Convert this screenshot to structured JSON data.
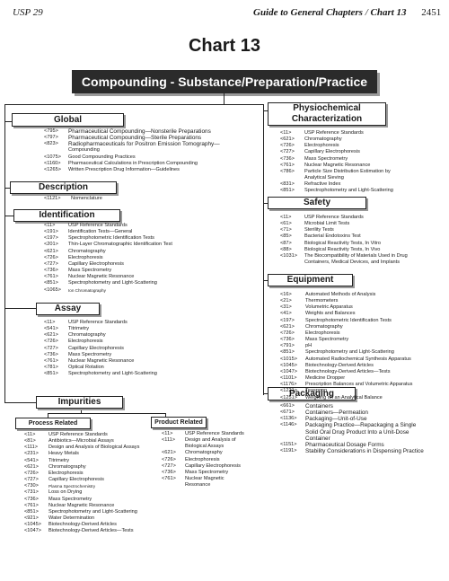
{
  "header": {
    "left": "USP 29",
    "guide": "Guide to General Chapters",
    "sep": "/",
    "chart": "Chart 13",
    "page": "2451"
  },
  "title": "Chart 13",
  "banner": "Compounding  -  Substance/Preparation/Practice",
  "sections": {
    "global": {
      "title": "Global",
      "items": [
        {
          "code": "<795>",
          "text": "Pharmaceutical Compounding—Nonsterile Preparations"
        },
        {
          "code": "<797>",
          "text": "Pharmaceutical Compounding—Sterile Preparations"
        },
        {
          "code": "<823>",
          "text": "Radiopharmaceuticals for Positron Emission Tomography—"
        },
        {
          "code": "",
          "text": "Compounding"
        },
        {
          "code": "<1075>",
          "text": "Good Compounding Practices"
        },
        {
          "code": "<1160>",
          "text": "Pharmaceutical Calculations in Prescription Compounding"
        },
        {
          "code": "<1265>",
          "text": "Written Prescription Drug Information—Guidelines"
        }
      ]
    },
    "description": {
      "title": "Description",
      "items": [
        {
          "code": "<1121>",
          "text": "Nomenclature"
        }
      ]
    },
    "identification": {
      "title": "Identification",
      "items": [
        {
          "code": "<11>",
          "text": "USP Reference Standards"
        },
        {
          "code": "<191>",
          "text": "Identification Tests—General"
        },
        {
          "code": "<197>",
          "text": "Spectrophotometric Identification Tests"
        },
        {
          "code": "<201>",
          "text": "Thin-Layer Chromatographic Identification Test"
        },
        {
          "code": "<621>",
          "text": "Chromatography"
        },
        {
          "code": "<726>",
          "text": "Electrophoresis"
        },
        {
          "code": "<727>",
          "text": "Capillary Electrophoresis"
        },
        {
          "code": "<736>",
          "text": "Mass Spectrometry"
        },
        {
          "code": "<761>",
          "text": "Nuclear Magnetic Resonance"
        },
        {
          "code": "<851>",
          "text": "Spectrophotometry and Light-Scattering"
        },
        {
          "code": "<1065>",
          "text": "Ion Chromatography"
        }
      ]
    },
    "assay": {
      "title": "Assay",
      "items": [
        {
          "code": "<11>",
          "text": "USP Reference Standards"
        },
        {
          "code": "<541>",
          "text": "Titrimetry"
        },
        {
          "code": "<621>",
          "text": "Chromatography"
        },
        {
          "code": "<726>",
          "text": "Electrophoresis"
        },
        {
          "code": "<727>",
          "text": "Capillary Electrophoresis"
        },
        {
          "code": "<736>",
          "text": "Mass Spectrometry"
        },
        {
          "code": "<761>",
          "text": "Nuclear Magnetic Resonance"
        },
        {
          "code": "<781>",
          "text": "Optical Rotation"
        },
        {
          "code": "<851>",
          "text": "Spectrophotometry and Light-Scattering"
        }
      ]
    },
    "impurities": {
      "title": "Impurities"
    },
    "process_related": {
      "title": "Process Related",
      "items": [
        {
          "code": "<11>",
          "text": "USP Reference Standards"
        },
        {
          "code": "<81>",
          "text": "Antibiotics—Microbial Assays"
        },
        {
          "code": "<111>",
          "text": "Design and Analysis of Biological Assays"
        },
        {
          "code": "<231>",
          "text": "Heavy Metals"
        },
        {
          "code": "<541>",
          "text": "Titrimetry"
        },
        {
          "code": "<621>",
          "text": "Chromatography"
        },
        {
          "code": "<726>",
          "text": "Electrophoresis"
        },
        {
          "code": "<727>",
          "text": "Capillary Electrophoresis"
        },
        {
          "code": "<730>",
          "text": "Plasma Spectrochemistry"
        },
        {
          "code": "<731>",
          "text": "Loss on Drying"
        },
        {
          "code": "<736>",
          "text": "Mass Spectrometry"
        },
        {
          "code": "<761>",
          "text": "Nuclear Magnetic Resonance"
        },
        {
          "code": "<851>",
          "text": "Spectrophotometry and Light-Scattering"
        },
        {
          "code": "<921>",
          "text": "Water Determination"
        },
        {
          "code": "<1045>",
          "text": "Biotechnology-Derived Articles"
        },
        {
          "code": "<1047>",
          "text": "Biotechnology-Derived Articles—Tests"
        }
      ]
    },
    "product_related": {
      "title": "Product Related",
      "items": [
        {
          "code": "<11>",
          "text": "USP Reference Standards"
        },
        {
          "code": "<111>",
          "text": "Design and Analysis of"
        },
        {
          "code": "",
          "text": "Biological Assays"
        },
        {
          "code": "<621>",
          "text": "Chromatography"
        },
        {
          "code": "<726>",
          "text": "Electrophoresis"
        },
        {
          "code": "<727>",
          "text": "Capillary Electrophoresis"
        },
        {
          "code": "<736>",
          "text": "Mass Spectrometry"
        },
        {
          "code": "<761>",
          "text": "Nuclear Magnetic"
        },
        {
          "code": "",
          "text": "Resonance"
        }
      ]
    },
    "physiochemical": {
      "title_line1": "Physiochemical",
      "title_line2": "Characterization",
      "items": [
        {
          "code": "<11>",
          "text": "USP Reference Standards"
        },
        {
          "code": "<621>",
          "text": "Chromatography"
        },
        {
          "code": "<726>",
          "text": "Electrophoresis"
        },
        {
          "code": "<727>",
          "text": "Capillary Electrophoresis"
        },
        {
          "code": "<736>",
          "text": "Mass Spectrometry"
        },
        {
          "code": "<761>",
          "text": "Nuclear Magnetic Resonance"
        },
        {
          "code": "<786>",
          "text": "Particle Size Distribution Estimation by"
        },
        {
          "code": "",
          "text": "Analytical Sieving"
        },
        {
          "code": "<831>",
          "text": "Refractive Index"
        },
        {
          "code": "<851>",
          "text": "Spectrophotometry and Light-Scattering"
        }
      ]
    },
    "safety": {
      "title": "Safety",
      "items": [
        {
          "code": "<11>",
          "text": "USP Reference Standards"
        },
        {
          "code": "<61>",
          "text": "Microbial Limit Tests"
        },
        {
          "code": "<71>",
          "text": "Sterility Tests"
        },
        {
          "code": "<85>",
          "text": "Bacterial Endotoxins Test"
        },
        {
          "code": "<87>",
          "text": "Biological Reactivity Tests, In Vitro"
        },
        {
          "code": "<88>",
          "text": "Biological Reactivity Tests, In Vivo"
        },
        {
          "code": "<1031>",
          "text": "The Biocompatibility of Materials Used in Drug"
        },
        {
          "code": "",
          "text": "Containers, Medical Devices, and Implants"
        }
      ]
    },
    "equipment": {
      "title": "Equipment",
      "items": [
        {
          "code": "<16>",
          "text": "Automated Methods of Analysis"
        },
        {
          "code": "<21>",
          "text": "Thermometers"
        },
        {
          "code": "<31>",
          "text": "Volumetric Apparatus"
        },
        {
          "code": "<41>",
          "text": "Weights and Balances"
        },
        {
          "code": "<197>",
          "text": "Spectrophotometric Identification Tests"
        },
        {
          "code": "<621>",
          "text": "Chromatography"
        },
        {
          "code": "<726>",
          "text": "Electrophoresis"
        },
        {
          "code": "<736>",
          "text": "Mass Spectrometry"
        },
        {
          "code": "<791>",
          "text": "pH"
        },
        {
          "code": "<851>",
          "text": "Spectrophotometry and Light-Scattering"
        },
        {
          "code": "<1015>",
          "text": "Automated Radiochemical Synthesis Apparatus"
        },
        {
          "code": "<1045>",
          "text": "Biotechnology-Derived Articles"
        },
        {
          "code": "<1047>",
          "text": "Biotechnology-Derived Articles—Tests"
        },
        {
          "code": "<1101>",
          "text": "Medicine Dropper"
        },
        {
          "code": "<1176>",
          "text": "Prescription Balances and Volumetric Apparatus"
        },
        {
          "code": "<1221>",
          "text": "Teaspoon"
        },
        {
          "code": "<1251>",
          "text": "Weighing on an Analytical Balance"
        }
      ]
    },
    "packaging": {
      "title": "Packaging",
      "items": [
        {
          "code": "<661>",
          "text": "Containers"
        },
        {
          "code": "<671>",
          "text": "Containers—Permeation"
        },
        {
          "code": "<1136>",
          "text": "Packaging—Unit-of-Use"
        },
        {
          "code": "<1146>",
          "text": "Packaging Practice—Repackaging a Single"
        },
        {
          "code": "",
          "text": "Solid Oral Drug Product Into a Unit-Dose"
        },
        {
          "code": "",
          "text": "Container"
        },
        {
          "code": "<1151>",
          "text": "Pharmaceutical Dosage Forms"
        },
        {
          "code": "<1191>",
          "text": "Stability Considerations in Dispensing Practice"
        }
      ]
    }
  }
}
